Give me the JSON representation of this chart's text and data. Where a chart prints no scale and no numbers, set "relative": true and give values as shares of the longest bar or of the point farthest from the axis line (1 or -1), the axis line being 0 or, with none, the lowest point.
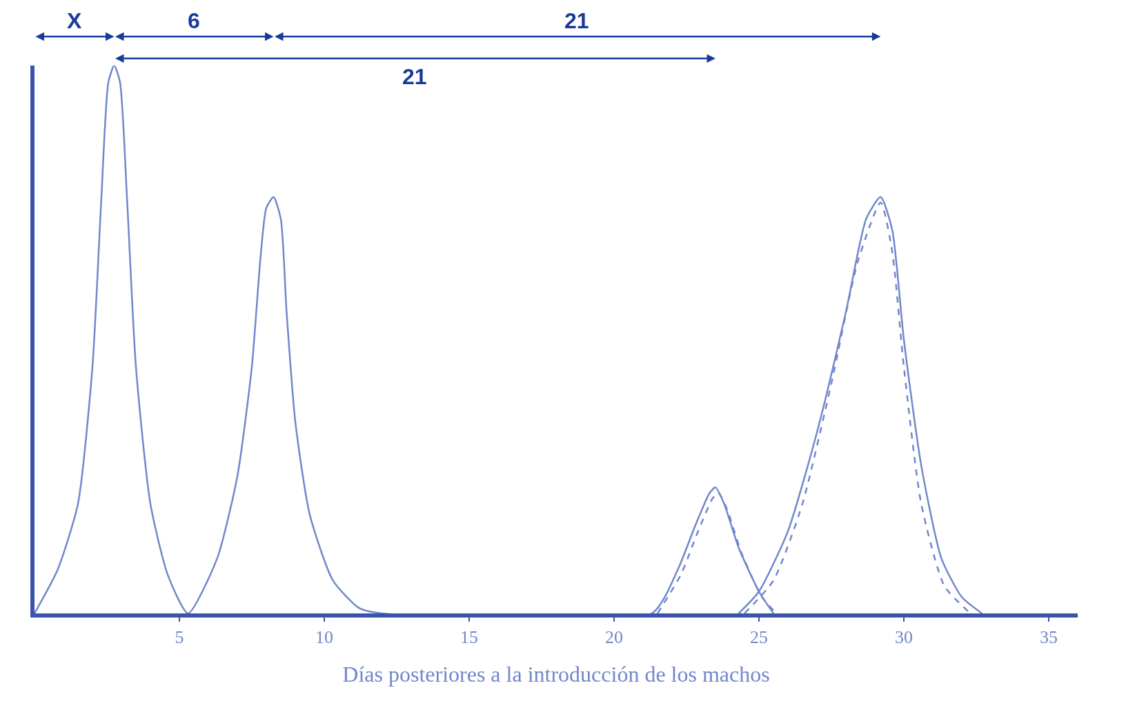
{
  "chart_data": {
    "type": "line",
    "relative": true,
    "xlabel": "Días posteriores a la introducción de los machos",
    "xlim": [
      0,
      36
    ],
    "xticks": [
      5,
      10,
      15,
      20,
      25,
      30,
      35
    ],
    "legend": false,
    "marker": "none",
    "tick_labels": "x",
    "series": [
      {
        "color": "#7087cc",
        "line_style": "solid",
        "x": [
          0,
          0.8,
          1.5,
          2.0,
          2.3,
          2.55,
          2.75,
          2.95,
          3.2,
          3.5,
          4.0,
          4.6,
          5.3,
          6.3,
          7.0,
          7.5,
          7.8,
          8.0,
          8.25,
          8.5,
          8.7,
          9.0,
          9.5,
          10.3,
          11.2,
          12,
          21.3,
          22.2,
          22.8,
          23.3,
          23.5,
          23.8,
          24.3,
          25,
          25.5
        ],
        "values": [
          0,
          0.08,
          0.2,
          0.45,
          0.75,
          0.97,
          1.0,
          0.97,
          0.75,
          0.45,
          0.2,
          0.07,
          0,
          0.1,
          0.25,
          0.45,
          0.65,
          0.74,
          0.76,
          0.72,
          0.55,
          0.35,
          0.18,
          0.06,
          0.01,
          0,
          0,
          0.08,
          0.16,
          0.22,
          0.23,
          0.2,
          0.12,
          0.04,
          0
        ]
      },
      {
        "color": "#7087cc",
        "line_style": "solid",
        "x": [
          24.3,
          25,
          26,
          27,
          28,
          28.7,
          29.2,
          29.6,
          30,
          30.6,
          31.3,
          32,
          32.7
        ],
        "values": [
          0,
          0.04,
          0.15,
          0.33,
          0.55,
          0.72,
          0.76,
          0.7,
          0.5,
          0.27,
          0.1,
          0.03,
          0
        ]
      },
      {
        "color": "#7087cc",
        "line_style": "dashed",
        "x": [
          21.5,
          22.3,
          22.9,
          23.4,
          23.6,
          23.9,
          24.4,
          25.1,
          25.6
        ],
        "values": [
          0,
          0.07,
          0.15,
          0.21,
          0.22,
          0.19,
          0.11,
          0.03,
          0
        ]
      },
      {
        "color": "#7087cc",
        "line_style": "dashed",
        "x": [
          24.5,
          25.5,
          26.5,
          27.5,
          28.4,
          29.2,
          29.6,
          30,
          30.6,
          31.4,
          32.3
        ],
        "values": [
          0,
          0.06,
          0.2,
          0.42,
          0.64,
          0.75,
          0.66,
          0.45,
          0.2,
          0.05,
          0
        ]
      }
    ],
    "annotations": [
      "X",
      "6",
      "21",
      "21"
    ]
  }
}
